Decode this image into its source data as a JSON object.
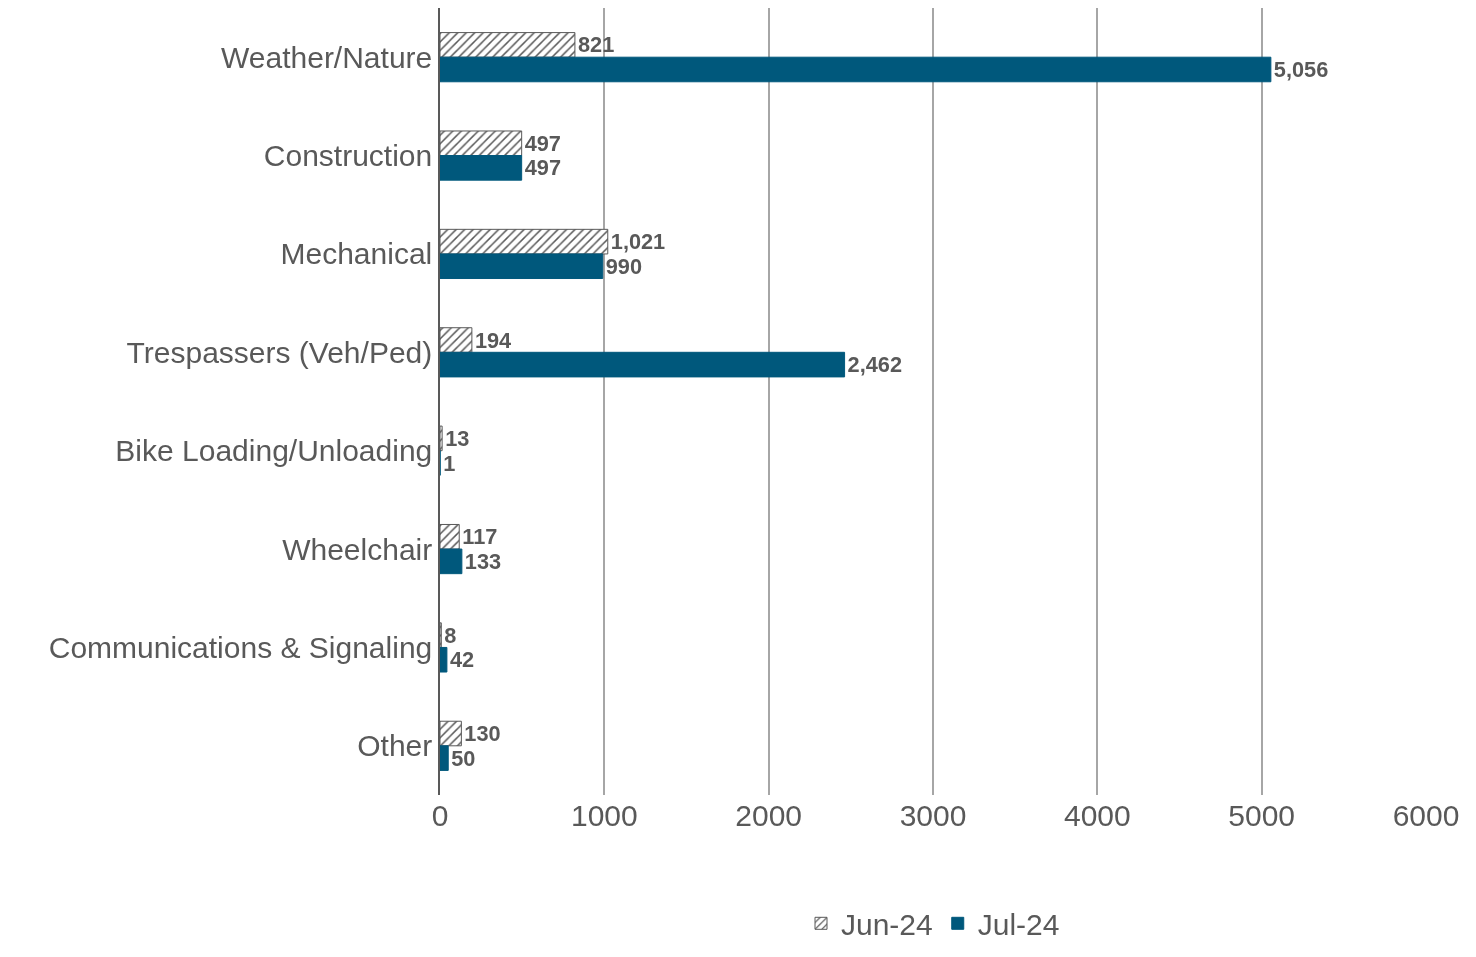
{
  "chart_data": {
    "type": "bar",
    "orientation": "horizontal",
    "categories": [
      "Weather/Nature",
      "Construction",
      "Mechanical",
      "Trespassers (Veh/Ped)",
      "Bike Loading/Unloading",
      "Wheelchair",
      "Communications & Signaling",
      "Other"
    ],
    "series": [
      {
        "name": "Jun-24",
        "color": "#595959",
        "values": [
          821,
          497,
          1021,
          194,
          13,
          117,
          8,
          130
        ],
        "value_labels": [
          "821",
          "497",
          "1,021",
          "194",
          "13",
          "117",
          "8",
          "130"
        ]
      },
      {
        "name": "Jul-24",
        "color": "#00587c",
        "values": [
          5056,
          497,
          990,
          2462,
          1,
          133,
          42,
          50
        ],
        "value_labels": [
          "5,056",
          "497",
          "990",
          "2,462",
          "1",
          "133",
          "42",
          "50"
        ]
      }
    ],
    "xlim": [
      0,
      6000
    ],
    "xticks": [
      0,
      1000,
      2000,
      3000,
      4000,
      5000,
      6000
    ],
    "grid": "x",
    "legend": "bottom"
  }
}
